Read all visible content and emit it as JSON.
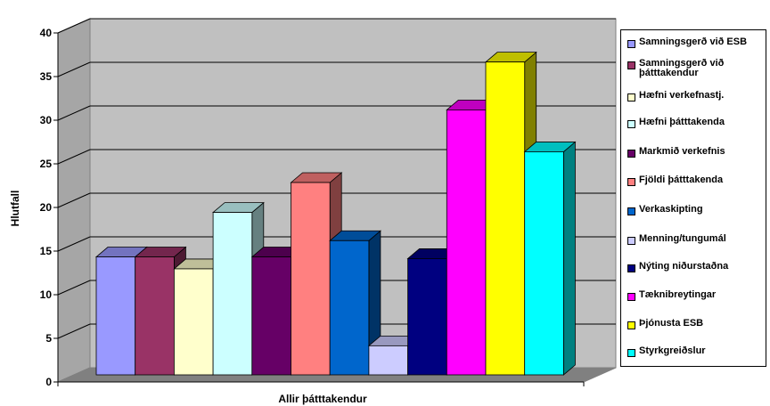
{
  "chart_data": {
    "type": "bar",
    "title": "",
    "xlabel": "Allir þátttakendur",
    "ylabel": "Hlutfall",
    "ylim": [
      0,
      40
    ],
    "yticks": [
      0,
      5,
      10,
      15,
      20,
      25,
      30,
      35,
      40
    ],
    "grid": true,
    "legend_position": "right",
    "style": "3d-clustered-column",
    "series": [
      {
        "name": "Samningsgerð við ESB",
        "color": "#9999FF",
        "value": 13.8
      },
      {
        "name": "Samningsgerð við þátttakendur",
        "color": "#993366",
        "value": 13.8
      },
      {
        "name": "Hæfni verkefnastj.",
        "color": "#FFFFCC",
        "value": 12.4
      },
      {
        "name": "Hæfni þátttakenda",
        "color": "#CCFFFF",
        "value": 19.0
      },
      {
        "name": "Markmið verkefnis",
        "color": "#660066",
        "value": 13.8
      },
      {
        "name": "Fjöldi þátttakenda",
        "color": "#FF8080",
        "value": 22.5
      },
      {
        "name": "Verkaskipting",
        "color": "#0066CC",
        "value": 15.7
      },
      {
        "name": "Menning/tungumál",
        "color": "#CCCCFF",
        "value": 3.4
      },
      {
        "name": "Nýting niðurstaðna",
        "color": "#000080",
        "value": 13.6
      },
      {
        "name": "Tæknibreytingar",
        "color": "#FF00FF",
        "value": 31.0
      },
      {
        "name": "Þjónusta ESB",
        "color": "#FFFF00",
        "value": 36.6
      },
      {
        "name": "Styrkgreiðslur",
        "color": "#00FFFF",
        "value": 26.1
      }
    ]
  }
}
